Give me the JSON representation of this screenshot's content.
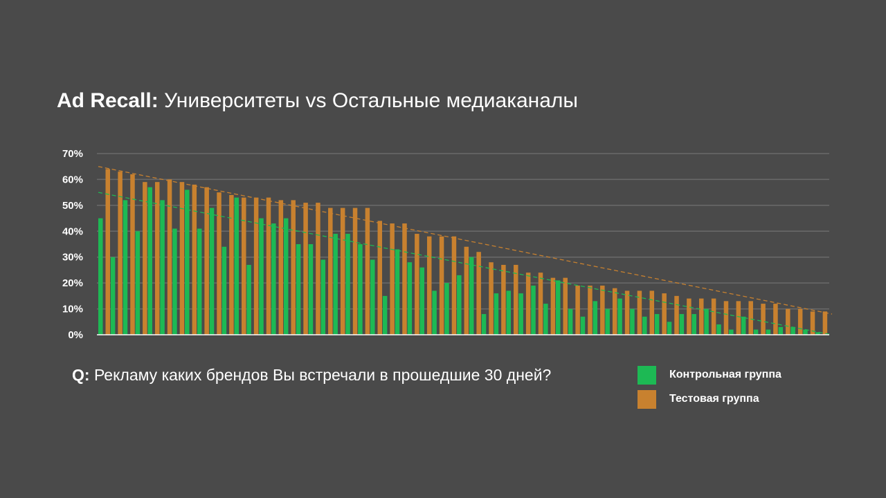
{
  "header": {
    "title_bold": "Ad Recall:",
    "title_rest": "Университеты vs Остальные медиаканалы"
  },
  "footer": {
    "question_prefix": "Q:",
    "question_text": "Рекламу каких брендов Вы встречали в прошедшие 30 дней?"
  },
  "colors": {
    "background": "#4a4a4a",
    "control": "#1db954",
    "test": "#c8812f",
    "grid": "#6a6a6a"
  },
  "legend": [
    {
      "label": "Контрольная группа",
      "color": "#1db954"
    },
    {
      "label": "Тестовая группа",
      "color": "#c8812f"
    }
  ],
  "chart_data": {
    "type": "bar",
    "title": "Ad Recall: Университеты vs Остальные медиаканалы",
    "ylim": [
      0,
      70
    ],
    "yticks": [
      "0%",
      "10%",
      "20%",
      "30%",
      "40%",
      "50%",
      "60%",
      "70%"
    ],
    "grid": true,
    "legend_position": "bottom-right",
    "series": [
      {
        "name": "Контрольная группа",
        "values": [
          45,
          30,
          52,
          40,
          57,
          52,
          41,
          56,
          41,
          49,
          34,
          53,
          27,
          45,
          43,
          45,
          35,
          35,
          29,
          39,
          39,
          35,
          29,
          15,
          33,
          28,
          26,
          17,
          20,
          23,
          30,
          8,
          16,
          17,
          16,
          19,
          12,
          21,
          10,
          7,
          13,
          10,
          14,
          10,
          7,
          8,
          5,
          8,
          8,
          10,
          4,
          2,
          7,
          2,
          2,
          3,
          3,
          2,
          1
        ]
      },
      {
        "name": "Тестовая группа",
        "values": [
          64,
          63,
          62,
          59,
          59,
          60,
          59,
          58,
          57,
          55,
          54,
          53,
          53,
          53,
          52,
          52,
          51,
          51,
          49,
          49,
          49,
          49,
          44,
          43,
          43,
          39,
          38,
          38,
          38,
          34,
          32,
          28,
          27,
          27,
          24,
          24,
          22,
          22,
          19,
          19,
          19,
          18,
          17,
          17,
          17,
          16,
          15,
          14,
          14,
          14,
          13,
          13,
          13,
          12,
          12,
          10,
          10,
          9,
          9
        ]
      }
    ],
    "trendlines": [
      {
        "series": "Тестовая группа",
        "style": "dashed",
        "start": 65,
        "end": 8
      },
      {
        "series": "Контрольная группа",
        "style": "dashed",
        "start": 55,
        "end": 0
      }
    ]
  }
}
